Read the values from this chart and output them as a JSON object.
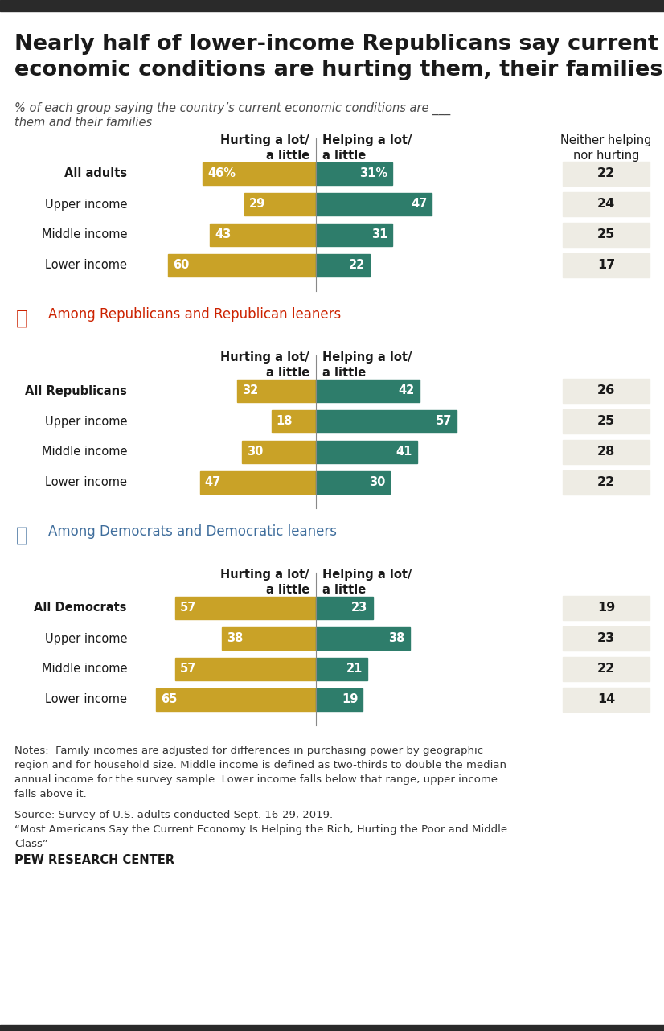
{
  "title": "Nearly half of lower-income Republicans say current\neconomic conditions are hurting them, their families",
  "subtitle": "% of each group saying the country’s current economic conditions are ___\nthem and their families",
  "sections": [
    {
      "label": null,
      "section_title": null,
      "rows": [
        {
          "name": "All adults",
          "bold": true,
          "hurting": 46,
          "helping": 31,
          "neither": 22,
          "hurting_pct": true,
          "helping_pct": true
        },
        {
          "name": "Upper income",
          "bold": false,
          "hurting": 29,
          "helping": 47,
          "neither": 24,
          "hurting_pct": false,
          "helping_pct": false
        },
        {
          "name": "Middle income",
          "bold": false,
          "hurting": 43,
          "helping": 31,
          "neither": 25,
          "hurting_pct": false,
          "helping_pct": false
        },
        {
          "name": "Lower income",
          "bold": false,
          "hurting": 60,
          "helping": 22,
          "neither": 17,
          "hurting_pct": false,
          "helping_pct": false
        }
      ]
    },
    {
      "label": "Among Republicans and Republican leaners",
      "party": "republican",
      "rows": [
        {
          "name": "All Republicans",
          "bold": true,
          "hurting": 32,
          "helping": 42,
          "neither": 26,
          "hurting_pct": false,
          "helping_pct": false
        },
        {
          "name": "Upper income",
          "bold": false,
          "hurting": 18,
          "helping": 57,
          "neither": 25,
          "hurting_pct": false,
          "helping_pct": false
        },
        {
          "name": "Middle income",
          "bold": false,
          "hurting": 30,
          "helping": 41,
          "neither": 28,
          "hurting_pct": false,
          "helping_pct": false
        },
        {
          "name": "Lower income",
          "bold": false,
          "hurting": 47,
          "helping": 30,
          "neither": 22,
          "hurting_pct": false,
          "helping_pct": false
        }
      ]
    },
    {
      "label": "Among Democrats and Democratic leaners",
      "party": "democrat",
      "rows": [
        {
          "name": "All Democrats",
          "bold": true,
          "hurting": 57,
          "helping": 23,
          "neither": 19,
          "hurting_pct": false,
          "helping_pct": false
        },
        {
          "name": "Upper income",
          "bold": false,
          "hurting": 38,
          "helping": 38,
          "neither": 23,
          "hurting_pct": false,
          "helping_pct": false
        },
        {
          "name": "Middle income",
          "bold": false,
          "hurting": 57,
          "helping": 21,
          "neither": 22,
          "hurting_pct": false,
          "helping_pct": false
        },
        {
          "name": "Lower income",
          "bold": false,
          "hurting": 65,
          "helping": 19,
          "neither": 14,
          "hurting_pct": false,
          "helping_pct": false
        }
      ]
    }
  ],
  "colors": {
    "hurting": "#C9A227",
    "helping": "#2E7D6B",
    "neither_bg": "#EEECE4",
    "republican": "#CC2200",
    "democrat": "#3E6D9C",
    "title_color": "#1a1a1a",
    "subtitle_color": "#4a4a4a",
    "bg": "#ffffff",
    "top_bar": "#2a2a2a"
  },
  "notes": "Notes:  Family incomes are adjusted for differences in purchasing power by geographic\nregion and for household size. Middle income is defined as two-thirds to double the median\nannual income for the survey sample. Lower income falls below that range, upper income\nfalls above it.",
  "source": "Source: Survey of U.S. adults conducted Sept. 16-29, 2019.\n“Most Americans Say the Current Economy Is Helping the Rich, Hurting the Poor and Middle\nClass”",
  "footer": "PEW RESEARCH CENTER",
  "col_header_hurting": "Hurting a lot/\na little",
  "col_header_helping": "Helping a lot/\na little",
  "col_header_neither": "Neither helping\nnor hurting",
  "max_bar": 75
}
